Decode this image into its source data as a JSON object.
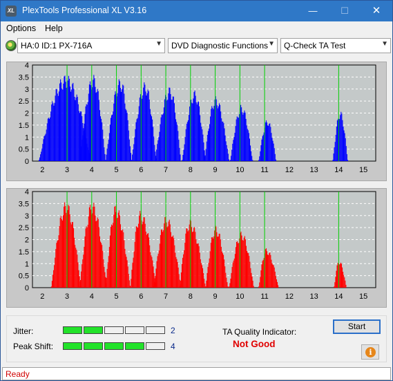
{
  "window": {
    "title": "PlexTools Professional XL V3.16",
    "icon_text": "XL",
    "controls": {
      "minimize": "—",
      "maximize": "☐",
      "close": "✕"
    }
  },
  "menu": {
    "options": "Options",
    "help": "Help"
  },
  "toolbar": {
    "drive": "HA:0 ID:1  PX-716A",
    "function": "DVD Diagnostic Functions",
    "test": "Q-Check TA Test",
    "arrow": "▼"
  },
  "chart_data": [
    {
      "type": "bar",
      "name": "lands",
      "color": "#0000ff",
      "xlim": [
        1.6,
        15.5
      ],
      "ylim": [
        0,
        4
      ],
      "xticks": [
        "2",
        "3",
        "4",
        "5",
        "6",
        "7",
        "8",
        "9",
        "10",
        "11",
        "12",
        "13",
        "14",
        "15"
      ],
      "yticks": [
        "0",
        "0.5",
        "1",
        "1.5",
        "2",
        "2.5",
        "3",
        "3.5",
        "4"
      ],
      "green_lines": [
        3,
        4,
        5,
        6,
        7,
        8,
        9,
        10,
        11,
        14
      ],
      "peaks": [
        {
          "center": 2.95,
          "height": 3.6,
          "left": 1.85,
          "right": 3.95
        },
        {
          "center": 4.05,
          "height": 3.6,
          "left": 3.5,
          "right": 4.55
        },
        {
          "center": 5.15,
          "height": 3.45,
          "left": 4.55,
          "right": 5.6
        },
        {
          "center": 6.15,
          "height": 3.3,
          "left": 5.6,
          "right": 6.6
        },
        {
          "center": 7.15,
          "height": 3.1,
          "left": 6.55,
          "right": 7.6
        },
        {
          "center": 8.15,
          "height": 2.95,
          "left": 7.65,
          "right": 8.6
        },
        {
          "center": 9.0,
          "height": 2.7,
          "left": 8.55,
          "right": 9.55
        },
        {
          "center": 10.05,
          "height": 2.35,
          "left": 9.6,
          "right": 10.5
        },
        {
          "center": 11.1,
          "height": 1.75,
          "left": 10.75,
          "right": 11.45
        },
        {
          "center": 14.05,
          "height": 2.1,
          "left": 13.75,
          "right": 14.35
        }
      ]
    },
    {
      "type": "bar",
      "name": "pits",
      "color": "#ff0000",
      "xlim": [
        1.6,
        15.5
      ],
      "ylim": [
        0,
        4
      ],
      "xticks": [
        "2",
        "3",
        "4",
        "5",
        "6",
        "7",
        "8",
        "9",
        "10",
        "11",
        "12",
        "13",
        "14",
        "15"
      ],
      "yticks": [
        "0",
        "0.5",
        "1",
        "1.5",
        "2",
        "2.5",
        "3",
        "3.5",
        "4"
      ],
      "green_lines": [
        3,
        4,
        5,
        6,
        7,
        8,
        9,
        10,
        11,
        14
      ],
      "peaks": [
        {
          "center": 2.95,
          "height": 3.6,
          "left": 2.35,
          "right": 3.55
        },
        {
          "center": 4.0,
          "height": 3.6,
          "left": 3.5,
          "right": 4.6
        },
        {
          "center": 4.95,
          "height": 3.45,
          "left": 4.55,
          "right": 5.55
        },
        {
          "center": 5.95,
          "height": 3.2,
          "left": 5.55,
          "right": 6.6
        },
        {
          "center": 7.0,
          "height": 3.0,
          "left": 6.5,
          "right": 7.6
        },
        {
          "center": 7.95,
          "height": 2.85,
          "left": 7.55,
          "right": 8.6
        },
        {
          "center": 9.0,
          "height": 2.6,
          "left": 8.6,
          "right": 9.5
        },
        {
          "center": 10.05,
          "height": 2.35,
          "left": 9.55,
          "right": 10.55
        },
        {
          "center": 11.05,
          "height": 1.65,
          "left": 10.75,
          "right": 11.55
        },
        {
          "center": 14.0,
          "height": 1.15,
          "left": 13.8,
          "right": 14.3
        }
      ]
    }
  ],
  "results": {
    "jitter_label": "Jitter:",
    "jitter_value": "2",
    "jitter_level": 2,
    "peak_label": "Peak Shift:",
    "peak_value": "4",
    "peak_level": 4,
    "meter_segments": 5,
    "ta_label": "TA Quality Indicator:",
    "ta_value": "Not Good",
    "start": "Start",
    "info_icon": "i"
  },
  "status": {
    "text": "Ready"
  },
  "colors": {
    "titlebar": "#2f78c7",
    "plot_bg": "#c4c9c9",
    "green_line": "#00d000",
    "meter_on": "#22e22a",
    "status_text": "#d00000",
    "ta_value": "#e00000"
  }
}
